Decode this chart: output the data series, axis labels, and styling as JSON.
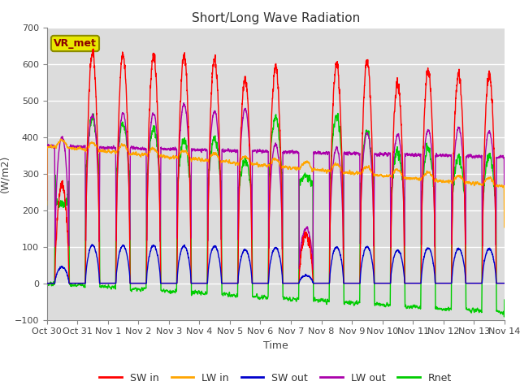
{
  "title": "Short/Long Wave Radiation",
  "xlabel": "Time",
  "ylabel": "(W/m2)",
  "ylim": [
    -100,
    700
  ],
  "xlim": [
    0,
    15
  ],
  "bg_color": "#dcdcdc",
  "annotation_label": "VR_met",
  "annotation_bg": "#e8e800",
  "annotation_edge": "#8b8b00",
  "annotation_text_color": "#8b0000",
  "x_ticks_labels": [
    "Oct 30",
    "Oct 31",
    "Nov 1",
    "Nov 2",
    "Nov 3",
    "Nov 4",
    "Nov 5",
    "Nov 6",
    "Nov 7",
    "Nov 8",
    "Nov 9",
    "Nov 10",
    "Nov 11",
    "Nov 12",
    "Nov 13",
    "Nov 14"
  ],
  "series_colors": {
    "SW_in": "#ff0000",
    "LW_in": "#ffa500",
    "SW_out": "#0000cc",
    "LW_out": "#aa00aa",
    "Rnet": "#00cc00"
  },
  "legend_labels": [
    "SW in",
    "LW in",
    "SW out",
    "LW out",
    "Rnet"
  ],
  "sw_peaks": [
    270,
    630,
    625,
    625,
    620,
    615,
    555,
    590,
    130,
    600,
    605,
    545,
    580,
    575,
    570
  ],
  "lw_out_peaks": [
    400,
    460,
    465,
    465,
    490,
    470,
    475,
    380,
    150,
    370,
    410,
    405,
    420,
    425,
    415
  ],
  "night_rnet": -55,
  "day_rnet_scale": 0.45
}
